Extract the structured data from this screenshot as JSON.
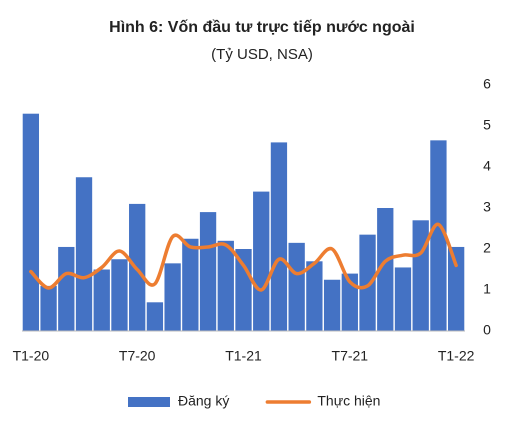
{
  "chart_data": {
    "type": "bar-line",
    "title": "Hình 6: Vốn đầu tư trực tiếp nước ngoài",
    "subtitle": "(Tỷ USD, NSA)",
    "categories": [
      "T1-20",
      null,
      null,
      null,
      null,
      null,
      "T7-20",
      null,
      null,
      null,
      null,
      null,
      "T1-21",
      null,
      null,
      null,
      null,
      null,
      "T7-21",
      null,
      null,
      null,
      null,
      null,
      "T1-22"
    ],
    "series": [
      {
        "name": "Đăng ký",
        "color": "#4472c4",
        "kind": "bar",
        "values": [
          5.3,
          1.1,
          2.05,
          3.75,
          1.5,
          1.75,
          3.1,
          0.7,
          1.65,
          2.25,
          2.9,
          2.2,
          2.0,
          3.4,
          4.6,
          2.15,
          1.7,
          1.25,
          1.4,
          2.35,
          3.0,
          1.55,
          2.7,
          4.65,
          2.05
        ]
      },
      {
        "name": "Thực hiện",
        "color": "#ed7d31",
        "kind": "line",
        "values": [
          1.45,
          1.05,
          1.4,
          1.3,
          1.55,
          1.95,
          1.5,
          1.15,
          2.3,
          2.05,
          2.05,
          2.1,
          1.6,
          1.0,
          1.75,
          1.4,
          1.65,
          2.0,
          1.2,
          1.1,
          1.7,
          1.85,
          1.9,
          2.6,
          1.6
        ]
      }
    ],
    "ylim": [
      0,
      6
    ],
    "yticks": [
      0,
      1,
      2,
      3,
      4,
      5,
      6
    ],
    "yaxis_side": "right",
    "grid": false,
    "legend": "bottom"
  }
}
